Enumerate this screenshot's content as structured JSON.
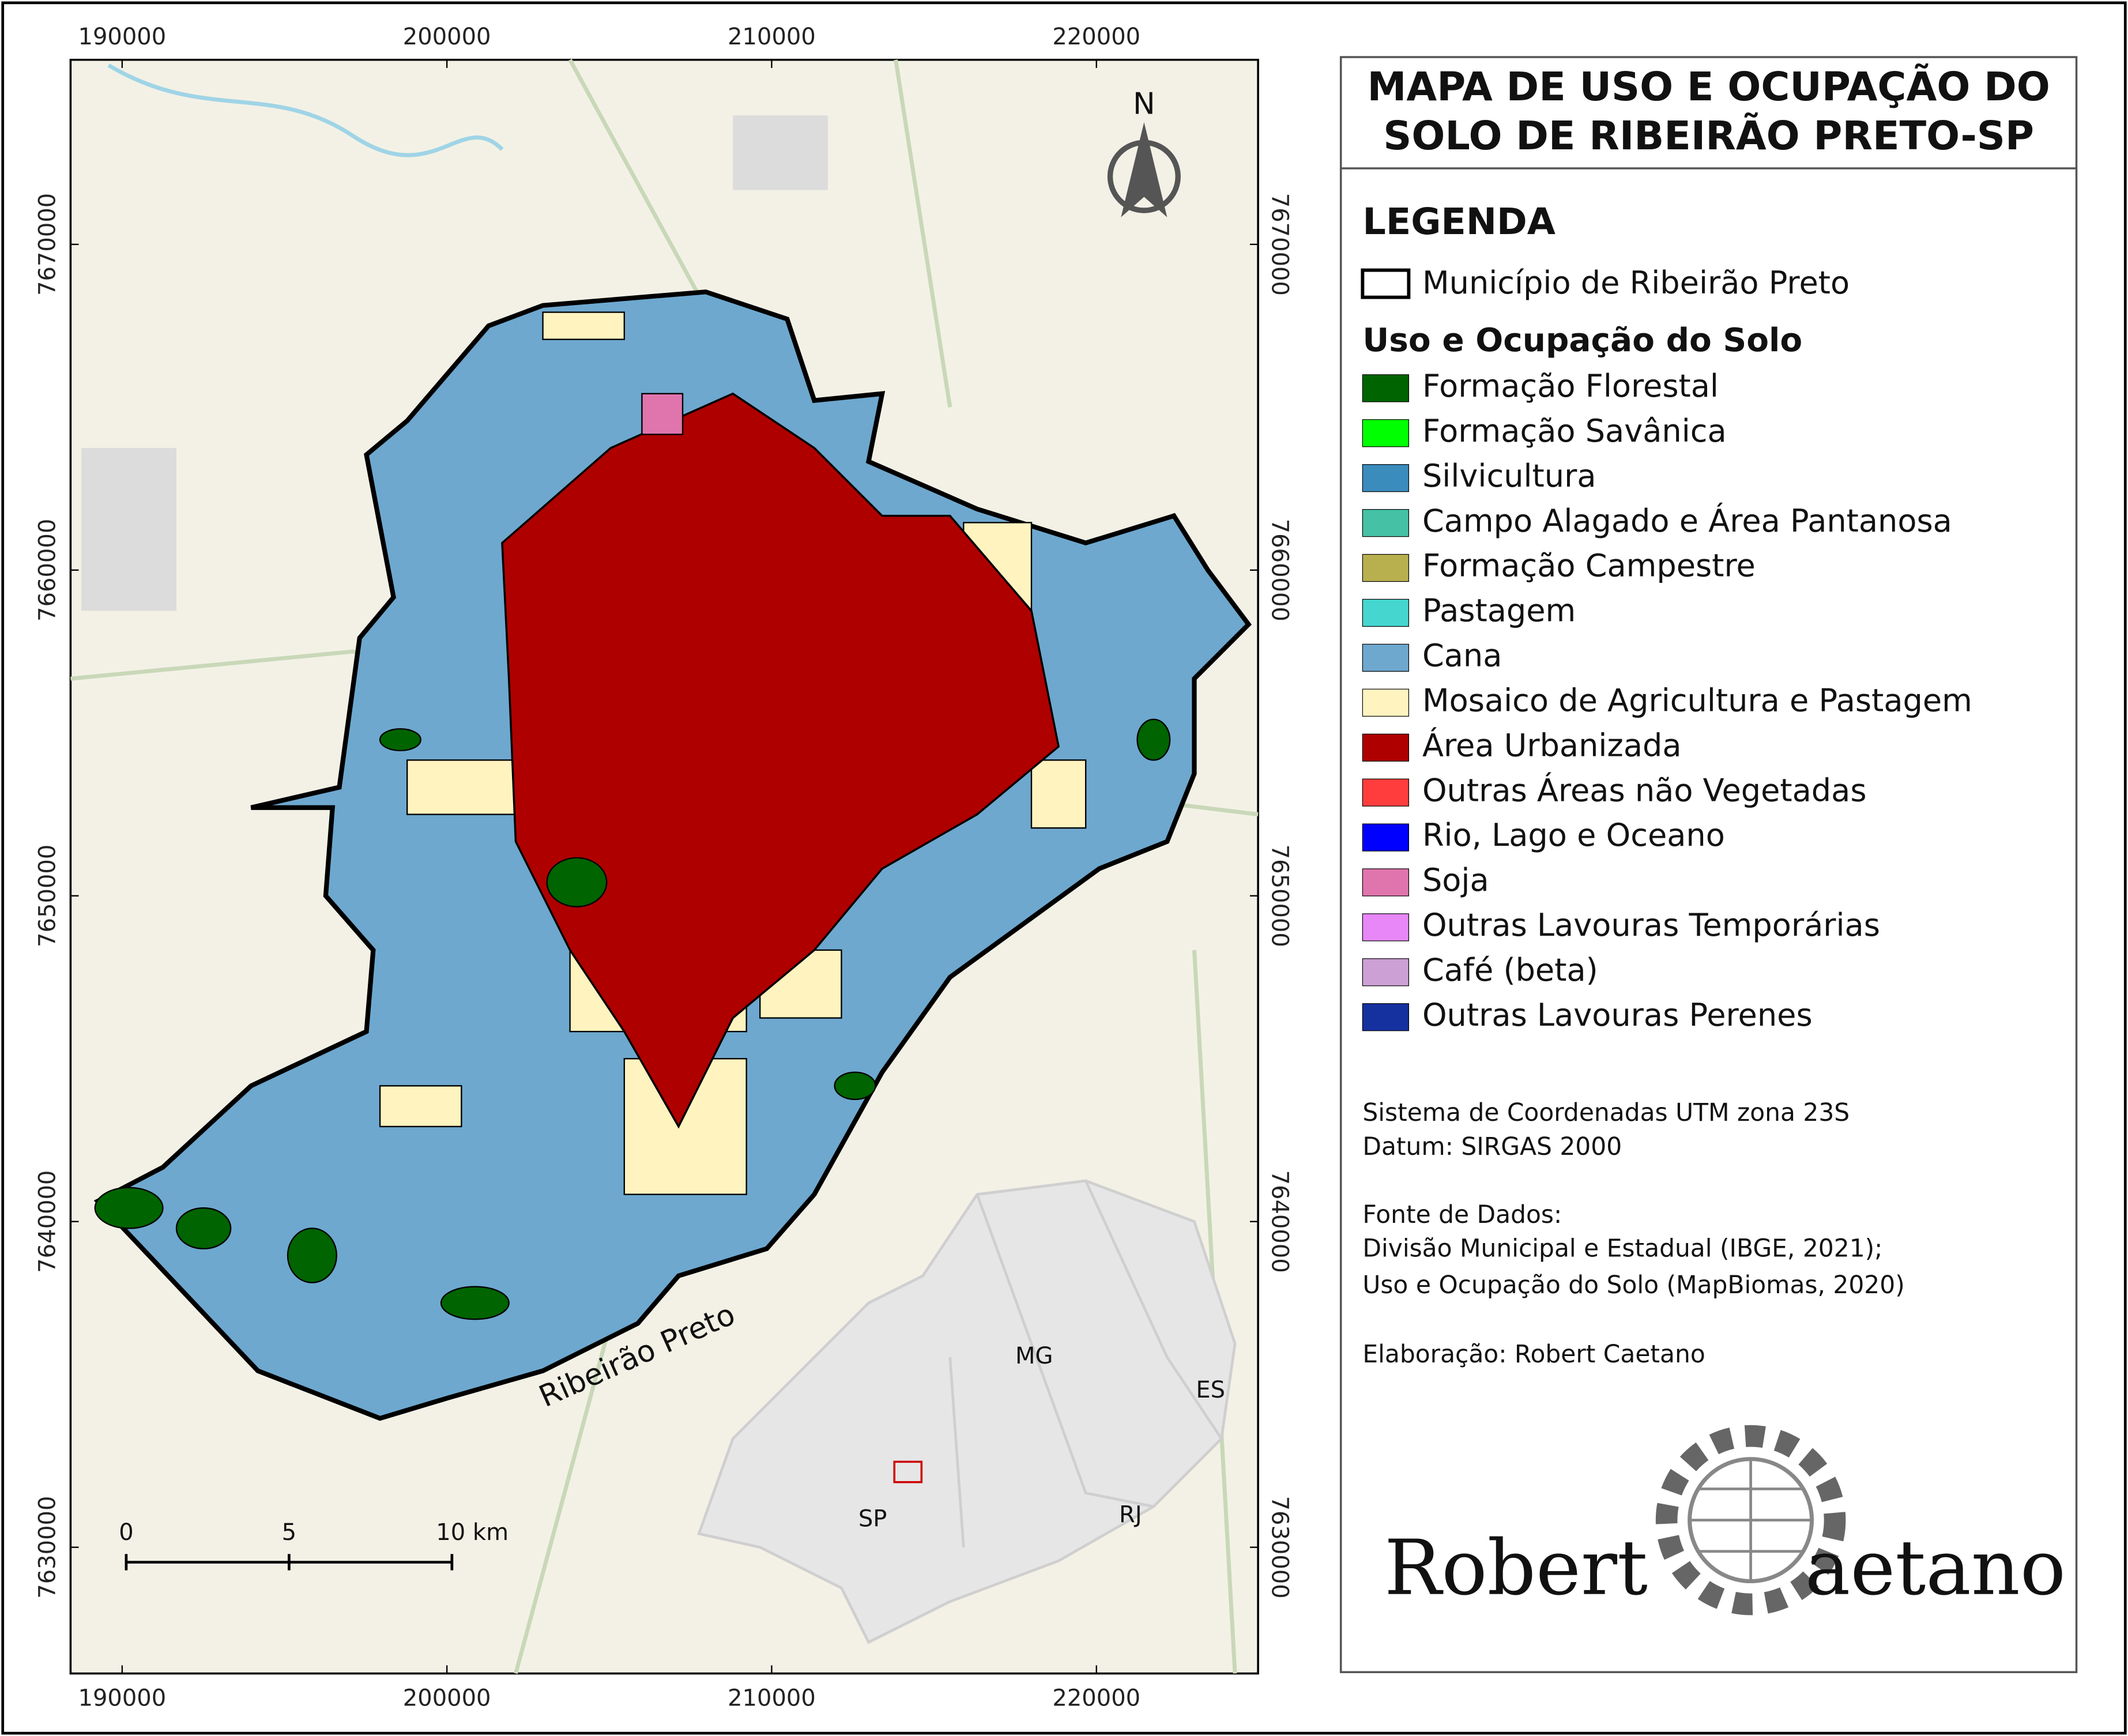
{
  "title": [
    "MAPA DE USO E OCUPAÇÃO DO",
    "SOLO DE RIBEIRÃO PRETO-SP"
  ],
  "legend": {
    "heading": "LEGENDA",
    "boundary": "Município de Ribeirão Preto",
    "section": "Uso e Ocupação do Solo",
    "items": [
      {
        "label": "Formação Florestal",
        "color": "#006400"
      },
      {
        "label": "Formação Savânica",
        "color": "#00ff00"
      },
      {
        "label": "Silvicultura",
        "color": "#3a8cbd"
      },
      {
        "label": "Campo Alagado e Área Pantanosa",
        "color": "#45c2a5"
      },
      {
        "label": "Formação Campestre",
        "color": "#b8af4f"
      },
      {
        "label": "Pastagem",
        "color": "#45d6d0"
      },
      {
        "label": "Cana",
        "color": "#6ea8cf"
      },
      {
        "label": "Mosaico de Agricultura e Pastagem",
        "color": "#fff3bf"
      },
      {
        "label": "Área Urbanizada",
        "color": "#af0000"
      },
      {
        "label": "Outras Áreas não Vegetadas",
        "color": "#ff3d3d"
      },
      {
        "label": "Rio, Lago e Oceano",
        "color": "#0000ff"
      },
      {
        "label": "Soja",
        "color": "#e075ad"
      },
      {
        "label": "Outras Lavouras Temporárias",
        "color": "#e787f8"
      },
      {
        "label": "Café (beta)",
        "color": "#cca0d4"
      },
      {
        "label": "Outras Lavouras Perenes",
        "color": "#1531a0"
      }
    ]
  },
  "grid": {
    "xticks": [
      190000,
      200000,
      210000,
      220000
    ],
    "yticks": [
      7670000,
      7660000,
      7650000,
      7640000,
      7630000
    ]
  },
  "notes": [
    "Sistema de Coordenadas UTM zona 23S",
    "Datum: SIRGAS 2000",
    "Fonte de Dados:",
    "Divisão Municipal e Estadual (IBGE, 2021);",
    "Uso e Ocupação do Solo (MapBiomas, 2020)",
    "Elaboração: Robert Caetano"
  ],
  "map_labels": {
    "river": "Ribeirão Preto",
    "states": [
      "MG",
      "ES",
      "SP",
      "RJ"
    ]
  },
  "scale_bar": [
    "0",
    "5",
    "10 km"
  ],
  "north": "N",
  "logo": [
    "Robert",
    "aetano"
  ]
}
